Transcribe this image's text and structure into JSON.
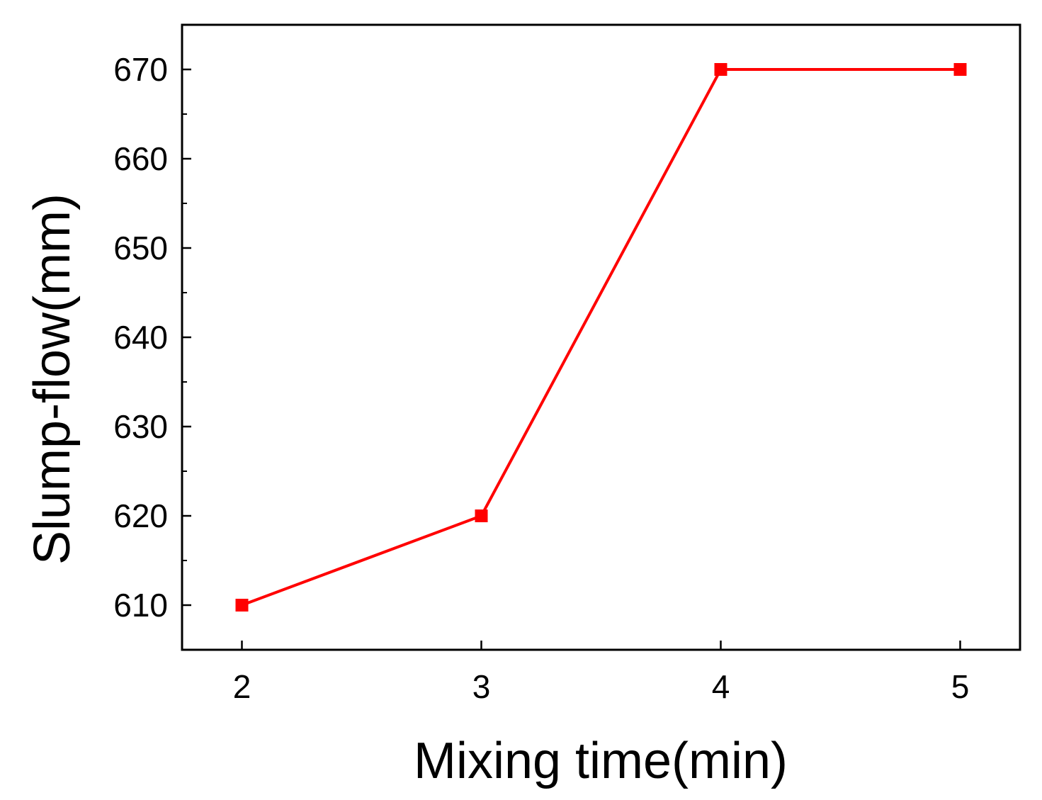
{
  "chart_data": {
    "type": "line",
    "title": "",
    "xlabel": "Mixing time(min)",
    "ylabel": "Slump-flow(mm)",
    "x": [
      2,
      3,
      4,
      5
    ],
    "series": [
      {
        "values": [
          610,
          620,
          670,
          670
        ],
        "color": "#ff0000",
        "marker": "square"
      }
    ],
    "xlim": [
      1.75,
      5.25
    ],
    "ylim": [
      605,
      675
    ],
    "xticks": [
      2,
      3,
      4,
      5
    ],
    "xtick_labels": [
      "2",
      "3",
      "4",
      "5"
    ],
    "yticks": [
      610,
      620,
      630,
      640,
      650,
      660,
      670
    ],
    "ytick_labels": [
      "610",
      "620",
      "630",
      "640",
      "650",
      "660",
      "670"
    ],
    "y_minor_step": 5,
    "grid": false,
    "legend": "none"
  }
}
